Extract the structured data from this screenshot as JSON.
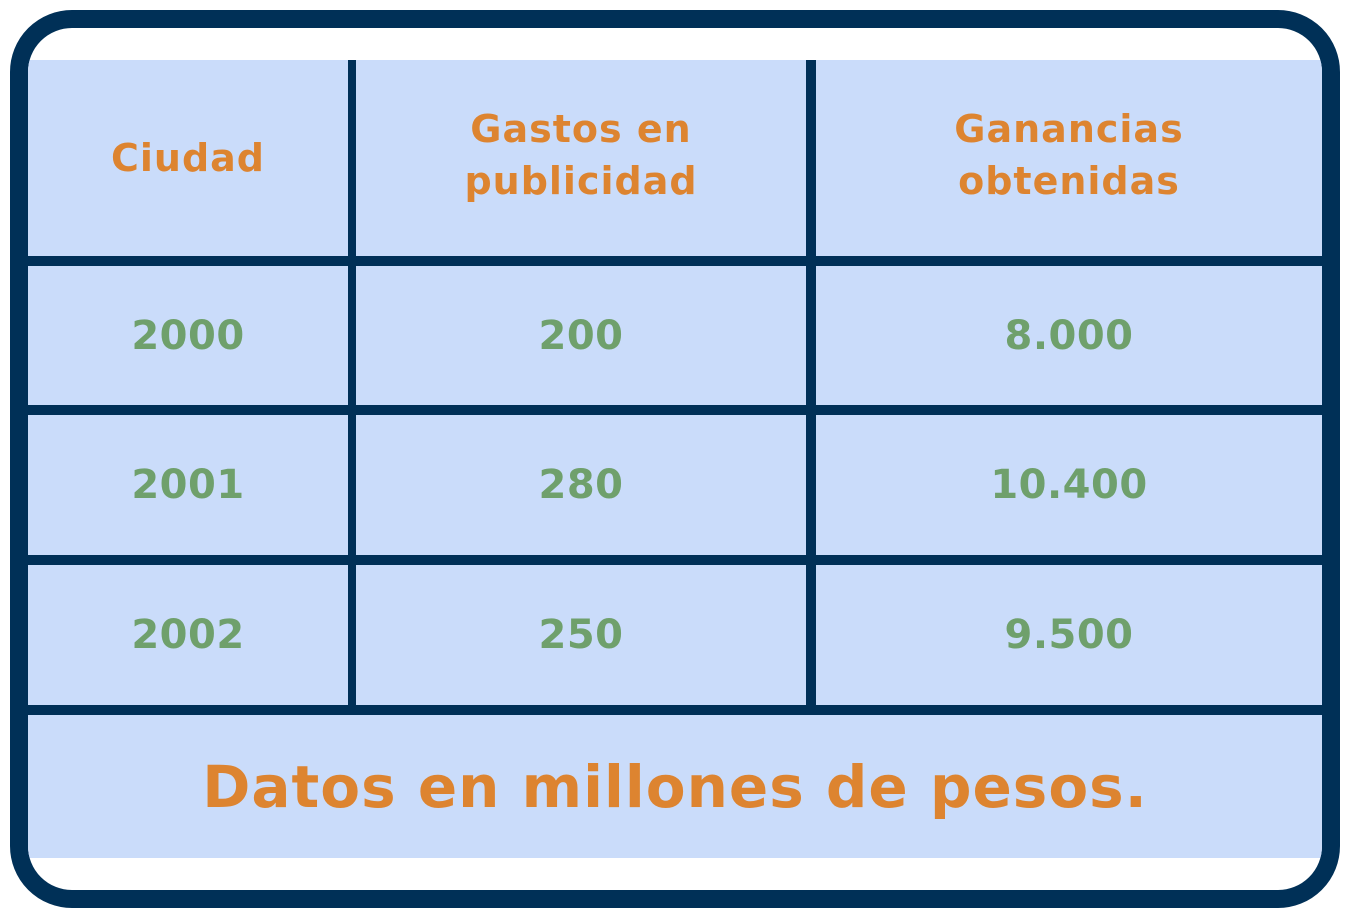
{
  "table": {
    "headers": [
      "Ciudad",
      "Gastos en publicidad",
      "Ganancias obtenidas"
    ],
    "header_lines": {
      "col1": [
        "Ciudad"
      ],
      "col2": [
        "Gastos en",
        "publicidad"
      ],
      "col3": [
        "Ganancias",
        "obtenidas"
      ]
    },
    "rows": [
      [
        "2000",
        "200",
        "8.000"
      ],
      [
        "2001",
        "280",
        "10.400"
      ],
      [
        "2002",
        "250",
        "9.500"
      ]
    ],
    "footnote": "Datos en millones de pesos."
  },
  "colors": {
    "border": "#003057",
    "cell_background": "#cadcfa",
    "header_text": "#dd8430",
    "value_text": "#6fa06c"
  }
}
